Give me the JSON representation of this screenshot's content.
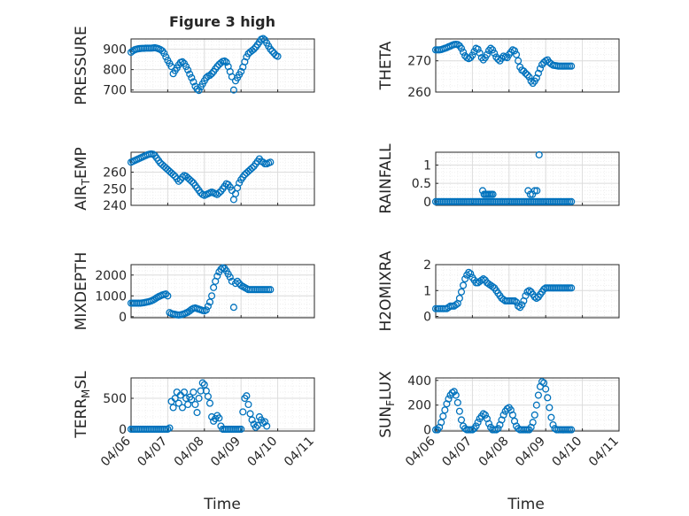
{
  "figure": {
    "title": "Figure 3 high",
    "xlabel": "Time",
    "x_tick_labels": [
      "04/06",
      "04/07",
      "04/08",
      "04/09",
      "04/10",
      "04/11"
    ],
    "marker_color": "#0072BD",
    "grid_major_color": "#dcdcdc",
    "grid_minor_color": "#ececec",
    "axes_color": "#262626"
  },
  "chart_data": [
    {
      "type": "scatter",
      "ylabel": "PRESSURE",
      "ylim": [
        690,
        950
      ],
      "yticks": [
        700,
        800,
        900
      ],
      "x": [
        6.0,
        6.05,
        6.1,
        6.15,
        6.2,
        6.25,
        6.3,
        6.35,
        6.4,
        6.45,
        6.5,
        6.55,
        6.6,
        6.65,
        6.7,
        6.75,
        6.8,
        6.85,
        6.9,
        6.95,
        7.0,
        7.05,
        7.1,
        7.15,
        7.2,
        7.25,
        7.3,
        7.35,
        7.4,
        7.45,
        7.5,
        7.55,
        7.6,
        7.65,
        7.7,
        7.75,
        7.8,
        7.85,
        7.9,
        7.95,
        8.0,
        8.05,
        8.1,
        8.15,
        8.2,
        8.25,
        8.3,
        8.35,
        8.4,
        8.45,
        8.5,
        8.55,
        8.6,
        8.65,
        8.7,
        8.75,
        8.8,
        8.85,
        8.9,
        8.95,
        9.0,
        9.05,
        9.1,
        9.15,
        9.2,
        9.25,
        9.3,
        9.35,
        9.4,
        9.45,
        9.5,
        9.55,
        9.6,
        9.65,
        9.7,
        9.75,
        9.8,
        9.85,
        9.9,
        9.95,
        10.0
      ],
      "y": [
        885,
        892,
        897,
        900,
        902,
        903,
        904,
        904,
        905,
        905,
        905,
        905,
        906,
        907,
        905,
        902,
        898,
        892,
        880,
        862,
        845,
        830,
        815,
        780,
        795,
        808,
        823,
        835,
        838,
        830,
        815,
        798,
        778,
        760,
        740,
        718,
        705,
        698,
        715,
        730,
        745,
        760,
        768,
        772,
        780,
        790,
        803,
        815,
        825,
        833,
        840,
        842,
        836,
        815,
        790,
        765,
        700,
        745,
        760,
        775,
        790,
        812,
        838,
        862,
        878,
        886,
        893,
        900,
        910,
        922,
        935,
        948,
        952,
        945,
        930,
        915,
        900,
        890,
        880,
        870,
        865
      ]
    },
    {
      "type": "scatter",
      "ylabel": "THETA",
      "ylim": [
        260,
        277
      ],
      "yticks": [
        260,
        270
      ],
      "x": [
        6.0,
        6.05,
        6.1,
        6.15,
        6.2,
        6.25,
        6.3,
        6.35,
        6.4,
        6.45,
        6.5,
        6.55,
        6.6,
        6.65,
        6.7,
        6.75,
        6.8,
        6.85,
        6.9,
        6.95,
        7.0,
        7.05,
        7.1,
        7.15,
        7.2,
        7.25,
        7.3,
        7.35,
        7.4,
        7.45,
        7.5,
        7.55,
        7.6,
        7.65,
        7.7,
        7.75,
        7.8,
        7.85,
        7.9,
        7.95,
        8.0,
        8.05,
        8.1,
        8.15,
        8.2,
        8.25,
        8.3,
        8.35,
        8.4,
        8.45,
        8.5,
        8.55,
        8.6,
        8.65,
        8.7,
        8.75,
        8.8,
        8.85,
        8.9,
        8.95,
        9.0,
        9.05,
        9.1,
        9.15,
        9.2,
        9.25,
        9.3,
        9.35,
        9.4,
        9.45,
        9.5,
        9.55,
        9.6,
        9.65,
        9.7
      ],
      "y": [
        273.5,
        273.5,
        273.5,
        273.6,
        273.8,
        274.0,
        274.2,
        274.5,
        274.7,
        275.0,
        275.2,
        275.3,
        275.2,
        274.8,
        274.0,
        272.8,
        271.6,
        271.0,
        270.7,
        271.0,
        271.8,
        273.0,
        274.0,
        273.7,
        272.5,
        271.0,
        270.3,
        271.0,
        272.0,
        273.3,
        274.0,
        273.5,
        272.4,
        271.2,
        270.5,
        270.0,
        270.8,
        271.5,
        271.2,
        271.0,
        272.0,
        272.8,
        273.5,
        273.2,
        272.0,
        270.0,
        268.0,
        267.0,
        266.7,
        266.0,
        265.5,
        264.8,
        263.5,
        262.8,
        263.5,
        264.5,
        266.0,
        267.5,
        268.8,
        269.5,
        270.0,
        270.3,
        269.5,
        269.0,
        268.6,
        268.5,
        268.4,
        268.3,
        268.3,
        268.3,
        268.3,
        268.3,
        268.3,
        268.3,
        268.3
      ]
    },
    {
      "type": "scatter",
      "ylabel": "AIR_TEMP",
      "ylim": [
        240,
        272
      ],
      "yticks": [
        240,
        250,
        260
      ],
      "x": [
        6.0,
        6.05,
        6.1,
        6.15,
        6.2,
        6.25,
        6.3,
        6.35,
        6.4,
        6.45,
        6.5,
        6.55,
        6.6,
        6.65,
        6.7,
        6.75,
        6.8,
        6.85,
        6.9,
        6.95,
        7.0,
        7.05,
        7.1,
        7.15,
        7.2,
        7.25,
        7.3,
        7.35,
        7.4,
        7.45,
        7.5,
        7.55,
        7.6,
        7.65,
        7.7,
        7.75,
        7.8,
        7.85,
        7.9,
        7.95,
        8.0,
        8.05,
        8.1,
        8.15,
        8.2,
        8.25,
        8.3,
        8.35,
        8.4,
        8.45,
        8.5,
        8.55,
        8.6,
        8.65,
        8.7,
        8.75,
        8.8,
        8.85,
        8.9,
        8.95,
        9.0,
        9.05,
        9.1,
        9.15,
        9.2,
        9.25,
        9.3,
        9.35,
        9.4,
        9.45,
        9.5,
        9.55,
        9.6,
        9.65,
        9.7,
        9.75,
        9.8
      ],
      "y": [
        266.0,
        266.5,
        267.0,
        267.5,
        268.0,
        268.5,
        269.0,
        269.5,
        270.0,
        270.5,
        270.8,
        271.0,
        270.8,
        270.0,
        268.5,
        267.0,
        265.5,
        264.5,
        263.5,
        262.5,
        261.5,
        260.5,
        259.5,
        258.5,
        257.5,
        256.0,
        254.5,
        255.5,
        257.0,
        258.0,
        257.5,
        256.5,
        255.5,
        254.5,
        253.5,
        252.0,
        250.5,
        249.0,
        247.5,
        246.5,
        246.0,
        246.5,
        247.0,
        247.5,
        248.0,
        247.5,
        247.0,
        246.5,
        247.5,
        248.5,
        250.0,
        251.5,
        253.0,
        252.5,
        251.0,
        249.0,
        243.5,
        247.0,
        250.5,
        253.5,
        255.5,
        257.0,
        258.5,
        259.5,
        260.5,
        261.5,
        262.5,
        263.5,
        265.0,
        266.5,
        268.0,
        266.5,
        266.0,
        265.0,
        265.0,
        265.5,
        266.0
      ]
    },
    {
      "type": "scatter",
      "ylabel": "RAINFALL",
      "ylim": [
        -0.1,
        1.35
      ],
      "yticks": [
        0,
        0.5,
        1
      ],
      "x": [
        6.0,
        6.05,
        6.1,
        6.15,
        6.2,
        6.25,
        6.3,
        6.35,
        6.4,
        6.45,
        6.5,
        6.55,
        6.6,
        6.65,
        6.7,
        6.75,
        6.8,
        6.85,
        6.9,
        6.95,
        7.0,
        7.05,
        7.1,
        7.15,
        7.2,
        7.25,
        7.3,
        7.35,
        7.4,
        7.45,
        7.5,
        7.55,
        7.6,
        7.65,
        7.7,
        7.75,
        7.8,
        7.85,
        7.9,
        7.95,
        8.0,
        8.05,
        8.1,
        8.15,
        8.2,
        8.25,
        8.3,
        8.35,
        8.4,
        8.45,
        8.5,
        8.55,
        8.6,
        8.65,
        8.7,
        8.75,
        8.8,
        8.85,
        8.9,
        8.95,
        9.0,
        9.05,
        9.1,
        9.15,
        9.2,
        9.25,
        9.3,
        9.35,
        9.4,
        9.45,
        9.5,
        9.55,
        9.6,
        9.65,
        9.7,
        7.28,
        7.32,
        7.36,
        7.4,
        7.44,
        7.48,
        7.52,
        7.56,
        8.52,
        8.58,
        8.64,
        8.7,
        8.76,
        8.82
      ],
      "y": [
        0,
        0,
        0,
        0,
        0,
        0,
        0,
        0,
        0,
        0,
        0,
        0,
        0,
        0,
        0,
        0,
        0,
        0,
        0,
        0,
        0,
        0,
        0,
        0,
        0,
        0,
        0,
        0,
        0,
        0,
        0,
        0,
        0,
        0,
        0,
        0,
        0,
        0,
        0,
        0,
        0,
        0,
        0,
        0,
        0,
        0,
        0,
        0,
        0,
        0,
        0,
        0,
        0,
        0,
        0,
        0,
        0,
        0,
        0,
        0,
        0,
        0,
        0,
        0,
        0,
        0,
        0,
        0,
        0,
        0,
        0,
        0,
        0,
        0,
        0,
        0.3,
        0.2,
        0.2,
        0.2,
        0.2,
        0.2,
        0.2,
        0.2,
        0.3,
        0.2,
        0.2,
        0.3,
        0.3,
        1.28
      ]
    },
    {
      "type": "scatter",
      "ylabel": "MIXDEPTH",
      "ylim": [
        -50,
        2500
      ],
      "yticks": [
        0,
        1000,
        2000
      ],
      "x": [
        6.0,
        6.05,
        6.1,
        6.15,
        6.2,
        6.25,
        6.3,
        6.35,
        6.4,
        6.45,
        6.5,
        6.55,
        6.6,
        6.65,
        6.7,
        6.75,
        6.8,
        6.85,
        6.9,
        6.95,
        7.0,
        7.05,
        7.1,
        7.15,
        7.2,
        7.25,
        7.3,
        7.35,
        7.4,
        7.45,
        7.5,
        7.55,
        7.6,
        7.65,
        7.7,
        7.75,
        7.8,
        7.85,
        7.9,
        7.95,
        8.0,
        8.05,
        8.1,
        8.15,
        8.2,
        8.25,
        8.3,
        8.35,
        8.4,
        8.45,
        8.5,
        8.55,
        8.6,
        8.65,
        8.7,
        8.75,
        8.8,
        8.85,
        8.9,
        8.95,
        9.0,
        9.05,
        9.1,
        9.15,
        9.2,
        9.25,
        9.3,
        9.35,
        9.4,
        9.45,
        9.5,
        9.55,
        9.6,
        9.65,
        9.7,
        9.75,
        9.8
      ],
      "y": [
        650,
        650,
        650,
        650,
        650,
        650,
        660,
        670,
        690,
        710,
        730,
        760,
        800,
        850,
        910,
        960,
        1000,
        1040,
        1070,
        1090,
        1000,
        200,
        150,
        130,
        110,
        90,
        80,
        90,
        110,
        140,
        180,
        220,
        280,
        350,
        400,
        420,
        390,
        360,
        330,
        300,
        280,
        320,
        500,
        700,
        1000,
        1400,
        1700,
        1950,
        2150,
        2280,
        2350,
        2320,
        2200,
        2050,
        1900,
        1700,
        450,
        1600,
        1700,
        1600,
        1500,
        1450,
        1400,
        1350,
        1300,
        1300,
        1300,
        1300,
        1300,
        1300,
        1300,
        1300,
        1300,
        1300,
        1300,
        1300,
        1300
      ]
    },
    {
      "type": "scatter",
      "ylabel": "H2OMIXRA",
      "ylim": [
        -0.05,
        2.0
      ],
      "yticks": [
        0,
        1,
        2
      ],
      "x": [
        6.0,
        6.05,
        6.1,
        6.15,
        6.2,
        6.25,
        6.3,
        6.35,
        6.4,
        6.45,
        6.5,
        6.55,
        6.6,
        6.65,
        6.7,
        6.75,
        6.8,
        6.85,
        6.9,
        6.95,
        7.0,
        7.05,
        7.1,
        7.15,
        7.2,
        7.25,
        7.3,
        7.35,
        7.4,
        7.45,
        7.5,
        7.55,
        7.6,
        7.65,
        7.7,
        7.75,
        7.8,
        7.85,
        7.9,
        7.95,
        8.0,
        8.05,
        8.1,
        8.15,
        8.2,
        8.25,
        8.3,
        8.35,
        8.4,
        8.45,
        8.5,
        8.55,
        8.6,
        8.65,
        8.7,
        8.75,
        8.8,
        8.85,
        8.9,
        8.95,
        9.0,
        9.05,
        9.1,
        9.15,
        9.2,
        9.25,
        9.3,
        9.35,
        9.4,
        9.45,
        9.5,
        9.55,
        9.6,
        9.65,
        9.7
      ],
      "y": [
        0.3,
        0.3,
        0.3,
        0.3,
        0.3,
        0.3,
        0.3,
        0.35,
        0.4,
        0.4,
        0.4,
        0.45,
        0.5,
        0.7,
        0.95,
        1.2,
        1.45,
        1.6,
        1.7,
        1.65,
        1.5,
        1.4,
        1.3,
        1.3,
        1.35,
        1.4,
        1.45,
        1.4,
        1.3,
        1.25,
        1.2,
        1.15,
        1.1,
        1.0,
        0.9,
        0.8,
        0.7,
        0.65,
        0.6,
        0.6,
        0.6,
        0.6,
        0.6,
        0.6,
        0.55,
        0.4,
        0.35,
        0.45,
        0.6,
        0.8,
        0.95,
        1.0,
        0.95,
        0.85,
        0.75,
        0.7,
        0.75,
        0.85,
        0.95,
        1.05,
        1.1,
        1.1,
        1.1,
        1.1,
        1.1,
        1.1,
        1.1,
        1.1,
        1.1,
        1.1,
        1.1,
        1.1,
        1.1,
        1.1,
        1.1
      ]
    },
    {
      "type": "scatter",
      "ylabel": "TERR_MSL",
      "ylim": [
        -30,
        830
      ],
      "yticks": [
        0,
        500
      ],
      "x": [
        6.0,
        6.05,
        6.1,
        6.15,
        6.2,
        6.25,
        6.3,
        6.35,
        6.4,
        6.45,
        6.5,
        6.55,
        6.6,
        6.65,
        6.7,
        6.75,
        6.8,
        6.85,
        6.9,
        6.95,
        7.0,
        7.05,
        7.1,
        7.15,
        7.2,
        7.25,
        7.3,
        7.35,
        7.4,
        7.45,
        7.5,
        7.55,
        7.6,
        7.65,
        7.7,
        7.75,
        7.8,
        7.85,
        7.9,
        7.95,
        8.0,
        8.05,
        8.1,
        8.15,
        8.2,
        8.25,
        8.3,
        8.35,
        8.4,
        8.45,
        8.5,
        8.55,
        8.6,
        8.65,
        8.7,
        8.75,
        8.8,
        8.85,
        8.9,
        8.95,
        9.0,
        9.05,
        9.1,
        9.15,
        9.2,
        9.25,
        9.3,
        9.35,
        9.4,
        9.45,
        9.5,
        9.55,
        9.6,
        9.65,
        9.7
      ],
      "y": [
        0,
        0,
        0,
        0,
        0,
        0,
        0,
        0,
        0,
        0,
        0,
        0,
        0,
        0,
        0,
        0,
        0,
        0,
        0,
        0,
        0,
        20,
        450,
        350,
        500,
        600,
        420,
        550,
        350,
        600,
        500,
        400,
        520,
        480,
        600,
        400,
        270,
        500,
        620,
        750,
        720,
        620,
        530,
        420,
        200,
        130,
        170,
        220,
        180,
        50,
        0,
        0,
        0,
        0,
        0,
        0,
        0,
        0,
        0,
        0,
        0,
        280,
        500,
        540,
        400,
        250,
        150,
        80,
        30,
        60,
        200,
        150,
        100,
        120,
        50
      ]
    },
    {
      "type": "scatter",
      "ylabel": "SUN_FLUX",
      "ylim": [
        -10,
        420
      ],
      "yticks": [
        0,
        200,
        400
      ],
      "x": [
        6.0,
        6.05,
        6.1,
        6.15,
        6.2,
        6.25,
        6.3,
        6.35,
        6.4,
        6.45,
        6.5,
        6.55,
        6.6,
        6.65,
        6.7,
        6.75,
        6.8,
        6.85,
        6.9,
        6.95,
        7.0,
        7.05,
        7.1,
        7.15,
        7.2,
        7.25,
        7.3,
        7.35,
        7.4,
        7.45,
        7.5,
        7.55,
        7.6,
        7.65,
        7.7,
        7.75,
        7.8,
        7.85,
        7.9,
        7.95,
        8.0,
        8.05,
        8.1,
        8.15,
        8.2,
        8.25,
        8.3,
        8.35,
        8.4,
        8.45,
        8.5,
        8.55,
        8.6,
        8.65,
        8.7,
        8.75,
        8.8,
        8.85,
        8.9,
        8.95,
        9.0,
        9.05,
        9.1,
        9.15,
        9.2,
        9.25,
        9.3,
        9.35,
        9.4,
        9.45,
        9.5,
        9.55,
        9.6,
        9.65,
        9.7
      ],
      "y": [
        0,
        0,
        20,
        60,
        110,
        160,
        210,
        250,
        280,
        300,
        310,
        280,
        220,
        150,
        80,
        30,
        10,
        0,
        0,
        0,
        0,
        10,
        30,
        60,
        90,
        110,
        130,
        120,
        90,
        50,
        20,
        0,
        0,
        0,
        10,
        40,
        80,
        120,
        150,
        170,
        180,
        160,
        120,
        70,
        30,
        10,
        0,
        0,
        0,
        0,
        0,
        0,
        20,
        60,
        120,
        200,
        280,
        350,
        390,
        380,
        330,
        260,
        180,
        100,
        40,
        10,
        0,
        0,
        0,
        0,
        0,
        0,
        0,
        0,
        0
      ]
    }
  ]
}
